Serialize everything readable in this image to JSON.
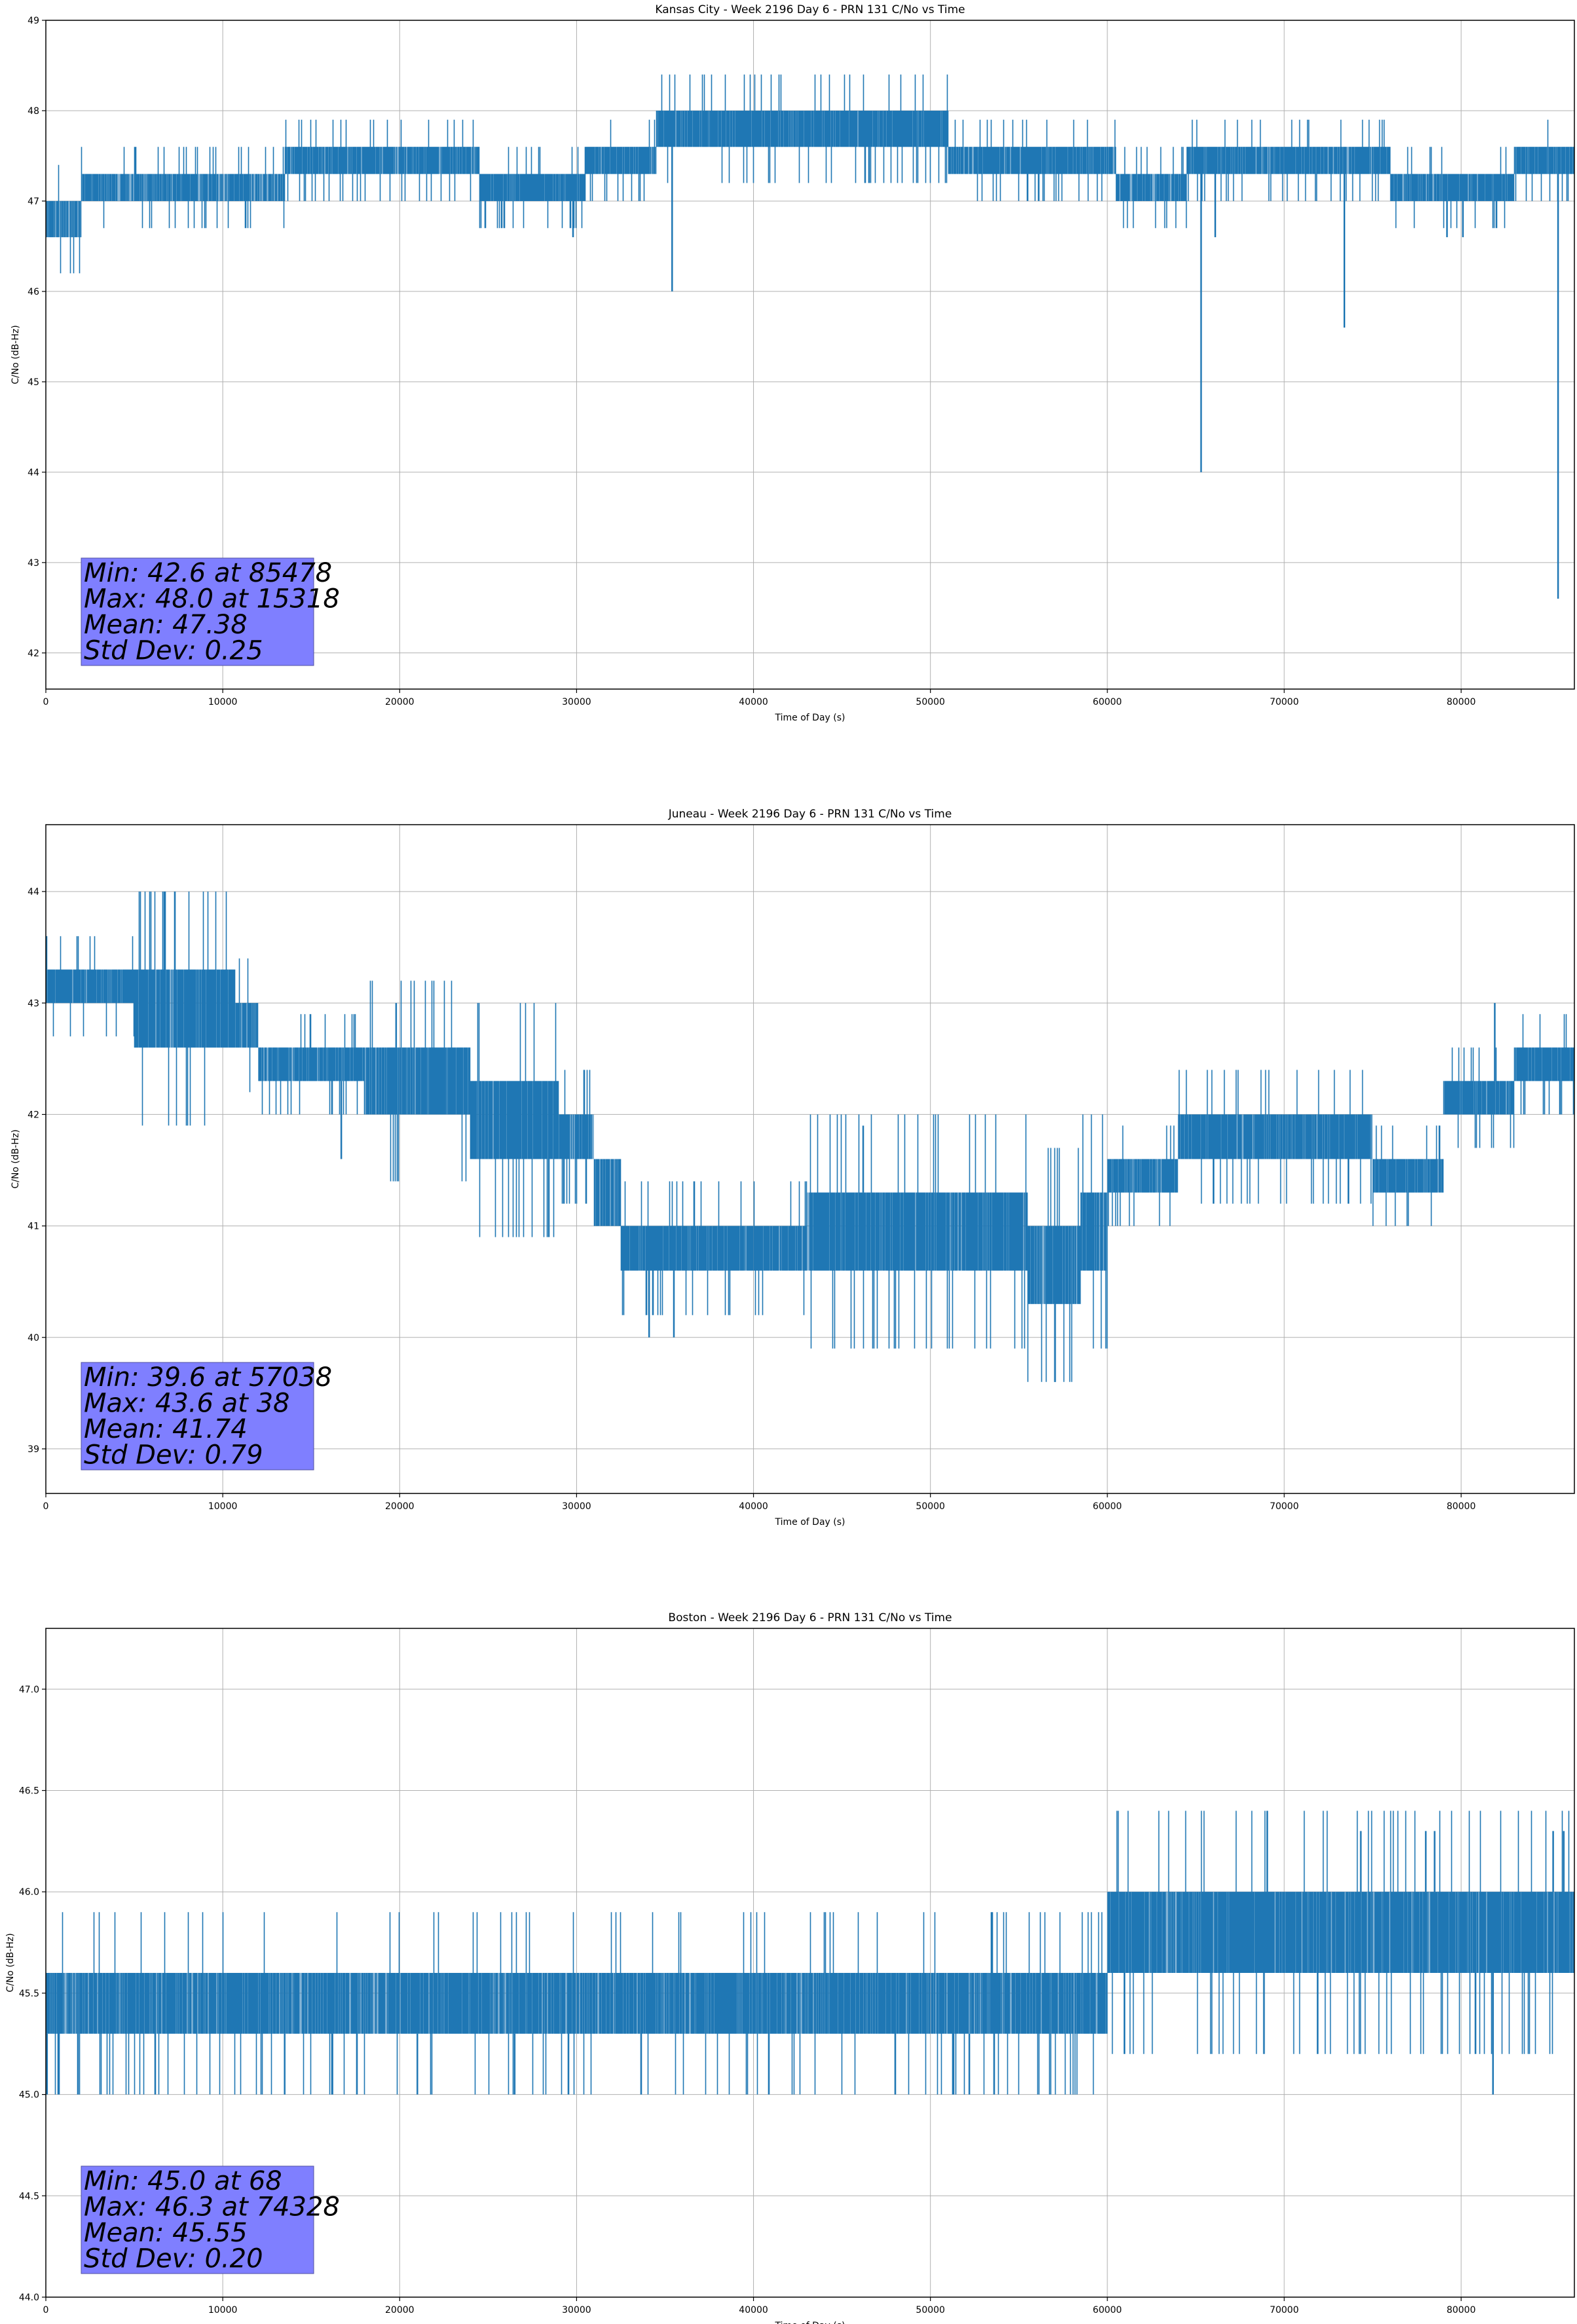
{
  "colors": {
    "series": "#1f77b4",
    "stats_box": "#7f7fff",
    "grid": "#b0b0b0"
  },
  "chart_data": [
    {
      "type": "line",
      "title": "Kansas City - Week 2196 Day 6 - PRN 131 C/No vs Time",
      "xlabel": "Time of Day (s)",
      "ylabel": "C/No (dB-Hz)",
      "xlim": [
        0,
        86400
      ],
      "ylim": [
        41.6,
        49
      ],
      "xticks": [
        0,
        10000,
        20000,
        30000,
        40000,
        50000,
        60000,
        70000,
        80000
      ],
      "yticks": [
        42,
        43,
        44,
        45,
        46,
        47,
        48,
        49
      ],
      "grid": true,
      "stats": [
        "Min: 42.6 at 85478",
        "Max: 48.0 at 15318",
        "Mean: 47.38",
        "Std Dev: 0.25"
      ],
      "series": [
        {
          "bands": [
            {
              "x0": 0,
              "x1": 2000,
              "low": 46.6,
              "high": 47.0,
              "density": 0.4,
              "drift": 0.2
            },
            {
              "x0": 2000,
              "x1": 5000,
              "low": 47.0,
              "high": 47.3,
              "density": 0.5,
              "drift": 0.2
            },
            {
              "x0": 5000,
              "x1": 13500,
              "low": 47.0,
              "high": 47.3,
              "density": 0.4,
              "drift": 0.3
            },
            {
              "x0": 13500,
              "x1": 24500,
              "low": 47.3,
              "high": 47.6,
              "density": 0.5,
              "drift": 0.3
            },
            {
              "x0": 24500,
              "x1": 30500,
              "low": 47.0,
              "high": 47.3,
              "density": 0.5,
              "drift": 0.3
            },
            {
              "x0": 30500,
              "x1": 34500,
              "low": 47.3,
              "high": 47.6,
              "density": 0.5,
              "drift": 0.3
            },
            {
              "x0": 34500,
              "x1": 51000,
              "low": 47.6,
              "high": 48.0,
              "density": 0.55,
              "drift": 0.3
            },
            {
              "x0": 51000,
              "x1": 60500,
              "low": 47.3,
              "high": 47.6,
              "density": 0.5,
              "drift": 0.3
            },
            {
              "x0": 60500,
              "x1": 64500,
              "low": 47.0,
              "high": 47.3,
              "density": 0.5,
              "drift": 0.3
            },
            {
              "x0": 64500,
              "x1": 76000,
              "low": 47.3,
              "high": 47.6,
              "density": 0.5,
              "drift": 0.3
            },
            {
              "x0": 76000,
              "x1": 83000,
              "low": 47.0,
              "high": 47.3,
              "density": 0.5,
              "drift": 0.3
            },
            {
              "x0": 83000,
              "x1": 86400,
              "low": 47.3,
              "high": 47.6,
              "density": 0.5,
              "drift": 0.3
            }
          ],
          "spikes": [
            [
              35400,
              46.0
            ],
            [
              65300,
              44.0
            ],
            [
              73400,
              45.6
            ],
            [
              85478,
              42.6
            ],
            [
              29800,
              46.6
            ],
            [
              66100,
              46.6
            ],
            [
              79200,
              46.6
            ],
            [
              80100,
              46.6
            ]
          ]
        }
      ]
    },
    {
      "type": "line",
      "title": "Juneau - Week 2196 Day 6 - PRN 131 C/No vs Time",
      "xlabel": "Time of Day (s)",
      "ylabel": "C/No (dB-Hz)",
      "xlim": [
        0,
        86400
      ],
      "ylim": [
        38.6,
        44.6
      ],
      "xticks": [
        0,
        10000,
        20000,
        30000,
        40000,
        50000,
        60000,
        70000,
        80000
      ],
      "yticks": [
        39,
        40,
        41,
        42,
        43,
        44
      ],
      "grid": true,
      "stats": [
        "Min: 39.6 at 57038",
        "Max: 43.6 at 38",
        "Mean: 41.74",
        "Std Dev: 0.79"
      ],
      "series": [
        {
          "bands": [
            {
              "x0": 0,
              "x1": 5000,
              "low": 43.0,
              "high": 43.3,
              "density": 0.6,
              "drift": 0.3
            },
            {
              "x0": 5000,
              "x1": 10700,
              "low": 42.6,
              "high": 43.3,
              "density": 0.55,
              "drift": 0.3
            },
            {
              "x0": 10700,
              "x1": 12000,
              "low": 42.6,
              "high": 43.0,
              "density": 0.5,
              "drift": 0.3
            },
            {
              "x0": 12000,
              "x1": 18000,
              "low": 42.3,
              "high": 42.6,
              "density": 0.55,
              "drift": 0.3
            },
            {
              "x0": 18000,
              "x1": 24000,
              "low": 42.0,
              "high": 42.6,
              "density": 0.55,
              "drift": 0.3
            },
            {
              "x0": 24000,
              "x1": 29000,
              "low": 41.6,
              "high": 42.3,
              "density": 0.55,
              "drift": 0.3
            },
            {
              "x0": 29000,
              "x1": 31000,
              "low": 41.6,
              "high": 42.0,
              "density": 0.5,
              "drift": 0.3
            },
            {
              "x0": 31000,
              "x1": 32500,
              "low": 41.0,
              "high": 41.6,
              "density": 0.5,
              "drift": 0.3
            },
            {
              "x0": 32500,
              "x1": 35000,
              "low": 40.6,
              "high": 41.0,
              "density": 0.5,
              "drift": 0.4
            },
            {
              "x0": 35000,
              "x1": 43000,
              "low": 40.6,
              "high": 41.0,
              "density": 0.55,
              "drift": 0.3
            },
            {
              "x0": 43000,
              "x1": 55500,
              "low": 40.6,
              "high": 41.3,
              "density": 0.55,
              "drift": 0.3
            },
            {
              "x0": 55500,
              "x1": 58500,
              "low": 40.3,
              "high": 41.0,
              "density": 0.5,
              "drift": 0.3
            },
            {
              "x0": 58500,
              "x1": 60000,
              "low": 40.6,
              "high": 41.3,
              "density": 0.5,
              "drift": 0.3
            },
            {
              "x0": 60000,
              "x1": 64000,
              "low": 41.3,
              "high": 41.6,
              "density": 0.5,
              "drift": 0.3
            },
            {
              "x0": 64000,
              "x1": 73000,
              "low": 41.6,
              "high": 42.0,
              "density": 0.55,
              "drift": 0.3
            },
            {
              "x0": 73000,
              "x1": 75000,
              "low": 41.6,
              "high": 42.0,
              "density": 0.5,
              "drift": 0.3
            },
            {
              "x0": 75000,
              "x1": 79000,
              "low": 41.3,
              "high": 41.6,
              "density": 0.5,
              "drift": 0.3
            },
            {
              "x0": 79000,
              "x1": 83000,
              "low": 42.0,
              "high": 42.3,
              "density": 0.55,
              "drift": 0.3
            },
            {
              "x0": 83000,
              "x1": 86400,
              "low": 42.3,
              "high": 42.6,
              "density": 0.55,
              "drift": 0.3
            }
          ],
          "spikes": [
            [
              38,
              43.6
            ],
            [
              57038,
              39.6
            ],
            [
              34100,
              40.0
            ],
            [
              35500,
              40.0
            ],
            [
              16700,
              41.6
            ],
            [
              19800,
              43.0
            ],
            [
              46200,
              41.9
            ],
            [
              81900,
              43.0
            ]
          ]
        }
      ]
    },
    {
      "type": "line",
      "title": "Boston - Week 2196 Day 6 - PRN 131 C/No vs Time",
      "xlabel": "Time of Day (s)",
      "ylabel": "C/No (dB-Hz)",
      "xlim": [
        0,
        86400
      ],
      "ylim": [
        44.0,
        47.3
      ],
      "xticks": [
        0,
        10000,
        20000,
        30000,
        40000,
        50000,
        60000,
        70000,
        80000
      ],
      "yticks": [
        44.0,
        44.5,
        45.0,
        45.5,
        46.0,
        46.5,
        47.0
      ],
      "ytick_labels": [
        "44.0",
        "44.5",
        "45.0",
        "45.5",
        "46.0",
        "46.5",
        "47.0"
      ],
      "grid": true,
      "stats": [
        "Min: 45.0 at 68",
        "Max: 46.3 at 74328",
        "Mean: 45.55",
        "Std Dev: 0.20"
      ],
      "series": [
        {
          "bands": [
            {
              "x0": 0,
              "x1": 3000,
              "low": 45.3,
              "high": 45.6,
              "density": 0.45,
              "drift": 0.3
            },
            {
              "x0": 3000,
              "x1": 60000,
              "low": 45.3,
              "high": 45.6,
              "density": 0.55,
              "drift": 0.25
            },
            {
              "x0": 60000,
              "x1": 86400,
              "low": 45.6,
              "high": 46.0,
              "density": 0.5,
              "drift": 0.35
            }
          ],
          "spikes": [
            [
              68,
              45.0
            ],
            [
              74328,
              46.3
            ],
            [
              78000,
              46.3
            ],
            [
              78500,
              46.3
            ],
            [
              85200,
              46.3
            ],
            [
              85800,
              46.3
            ],
            [
              52200,
              45.0
            ],
            [
              81800,
              45.0
            ],
            [
              26500,
              45.0
            ],
            [
              13500,
              45.0
            ],
            [
              16200,
              45.0
            ],
            [
              21000,
              45.0
            ]
          ]
        }
      ]
    }
  ]
}
